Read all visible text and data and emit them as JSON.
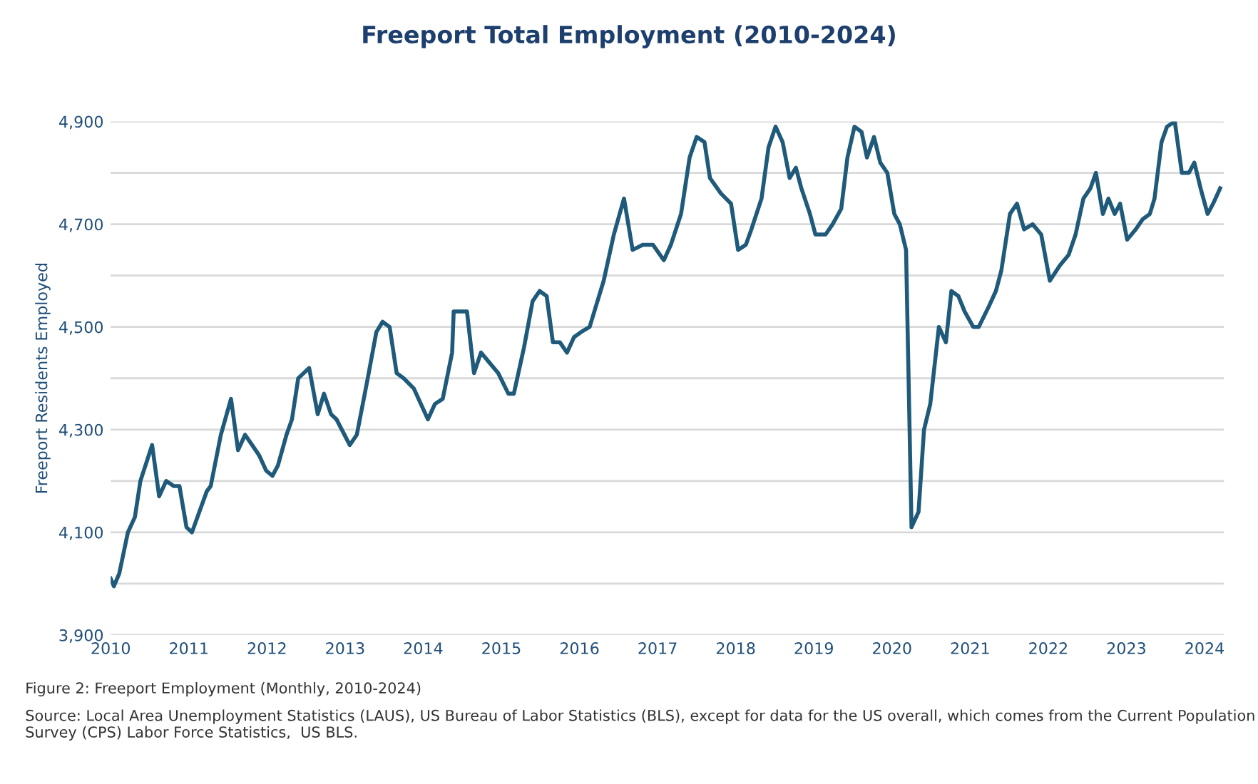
{
  "chart_data": {
    "type": "line",
    "title": "Freeport Total Employment (2010-2024)",
    "ylabel": "Freeport Residents Employed",
    "annotations": [
      "Figure 2: Freeport Employment (Monthly, 2010-2024)",
      "Source: Local Area Unemployment Statistics (LAUS), US Bureau of Labor Statistics (BLS), except for data for the US overall, which comes from the Current Population Survey (CPS) Labor Force Statistics,  US BLS."
    ],
    "x": [
      2010.0,
      2010.04,
      2010.11,
      2010.22,
      2010.31,
      2010.38,
      2010.53,
      2010.62,
      2010.71,
      2010.81,
      2010.88,
      2010.97,
      2011.04,
      2011.23,
      2011.28,
      2011.41,
      2011.54,
      2011.63,
      2011.72,
      2011.81,
      2011.9,
      2011.99,
      2012.07,
      2012.14,
      2012.25,
      2012.32,
      2012.4,
      2012.54,
      2012.65,
      2012.73,
      2012.82,
      2012.89,
      2013.06,
      2013.15,
      2013.29,
      2013.4,
      2013.48,
      2013.57,
      2013.66,
      2013.75,
      2013.88,
      2014.06,
      2014.15,
      2014.25,
      2014.37,
      2014.39,
      2014.56,
      2014.65,
      2014.74,
      2014.85,
      2014.96,
      2015.09,
      2015.16,
      2015.29,
      2015.4,
      2015.49,
      2015.58,
      2015.66,
      2015.75,
      2015.84,
      2015.93,
      2016.02,
      2016.13,
      2016.31,
      2016.44,
      2016.57,
      2016.68,
      2016.81,
      2016.94,
      2017.08,
      2017.17,
      2017.3,
      2017.41,
      2017.5,
      2017.6,
      2017.67,
      2017.81,
      2017.94,
      2018.03,
      2018.13,
      2018.2,
      2018.33,
      2018.42,
      2018.51,
      2018.6,
      2018.69,
      2018.77,
      2018.84,
      2018.95,
      2019.02,
      2019.15,
      2019.24,
      2019.35,
      2019.43,
      2019.52,
      2019.61,
      2019.68,
      2019.77,
      2019.85,
      2019.94,
      2020.03,
      2020.1,
      2020.18,
      2020.25,
      2020.34,
      2020.41,
      2020.49,
      2020.6,
      2020.69,
      2020.76,
      2020.85,
      2020.93,
      2021.04,
      2021.11,
      2021.24,
      2021.33,
      2021.4,
      2021.51,
      2021.6,
      2021.69,
      2021.8,
      2021.91,
      2022.02,
      2022.15,
      2022.26,
      2022.35,
      2022.45,
      2022.54,
      2022.61,
      2022.7,
      2022.77,
      2022.85,
      2022.92,
      2023.01,
      2023.12,
      2023.21,
      2023.3,
      2023.36,
      2023.45,
      2023.52,
      2023.62,
      2023.71,
      2023.8,
      2023.87,
      2023.95,
      2024.04,
      2024.11,
      2024.2
    ],
    "series": [
      {
        "color": "#1f5a7a",
        "values": [
          4010,
          3995,
          4020,
          4100,
          4130,
          4200,
          4270,
          4170,
          4200,
          4190,
          4190,
          4110,
          4100,
          4180,
          4190,
          4290,
          4360,
          4260,
          4290,
          4270,
          4250,
          4220,
          4210,
          4230,
          4290,
          4320,
          4400,
          4420,
          4330,
          4370,
          4330,
          4320,
          4270,
          4290,
          4400,
          4490,
          4510,
          4500,
          4410,
          4400,
          4380,
          4320,
          4350,
          4360,
          4450,
          4530,
          4530,
          4410,
          4450,
          4430,
          4410,
          4370,
          4370,
          4460,
          4550,
          4570,
          4560,
          4470,
          4470,
          4450,
          4480,
          4490,
          4500,
          4590,
          4680,
          4750,
          4650,
          4660,
          4660,
          4630,
          4660,
          4720,
          4830,
          4870,
          4860,
          4790,
          4760,
          4740,
          4650,
          4660,
          4690,
          4750,
          4850,
          4890,
          4860,
          4790,
          4810,
          4770,
          4720,
          4680,
          4680,
          4700,
          4730,
          4830,
          4890,
          4880,
          4830,
          4870,
          4820,
          4800,
          4720,
          4700,
          4650,
          4110,
          4140,
          4300,
          4350,
          4500,
          4470,
          4570,
          4560,
          4530,
          4500,
          4500,
          4540,
          4570,
          4610,
          4720,
          4740,
          4690,
          4700,
          4680,
          4590,
          4620,
          4640,
          4680,
          4750,
          4770,
          4800,
          4720,
          4750,
          4720,
          4740,
          4670,
          4690,
          4710,
          4720,
          4750,
          4860,
          4890,
          4900,
          4800,
          4800,
          4820,
          4770,
          4720,
          4740,
          4770
        ]
      }
    ],
    "xlim": [
      2010,
      2024.25
    ],
    "xticks": [
      2010,
      2011,
      2012,
      2013,
      2014,
      2015,
      2016,
      2017,
      2018,
      2019,
      2020,
      2021,
      2022,
      2023,
      2024
    ],
    "ylim": [
      3900,
      4900
    ],
    "yticks": [
      {
        "value": 3900,
        "label": "3,900"
      },
      {
        "value": 4000,
        "label": null
      },
      {
        "value": 4100,
        "label": "4,100"
      },
      {
        "value": 4200,
        "label": null
      },
      {
        "value": 4300,
        "label": "4,300"
      },
      {
        "value": 4400,
        "label": null
      },
      {
        "value": 4500,
        "label": "4,500"
      },
      {
        "value": 4600,
        "label": null
      },
      {
        "value": 4700,
        "label": "4,700"
      },
      {
        "value": 4800,
        "label": null
      },
      {
        "value": 4900,
        "label": "4,900"
      }
    ],
    "grid": "y",
    "legend": false,
    "marker": "none",
    "line_style": "solid"
  }
}
